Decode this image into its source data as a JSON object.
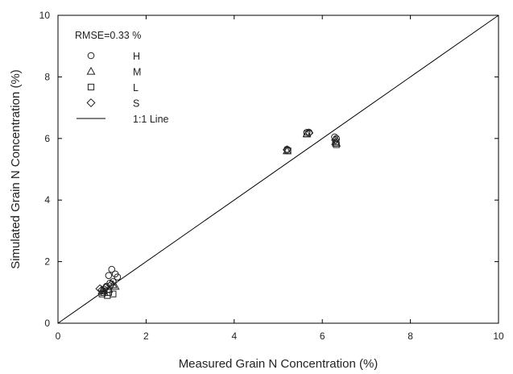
{
  "chart_data": {
    "type": "scatter",
    "title": "",
    "xlabel": "Measured Grain N Concentration (%)",
    "ylabel": "Simulated Grain N Concentration (%)",
    "xlim": [
      0,
      10
    ],
    "ylim": [
      0,
      10
    ],
    "xticks": [
      "0",
      "2",
      "4",
      "6",
      "8",
      "10"
    ],
    "yticks": [
      "0",
      "2",
      "4",
      "6",
      "8",
      "10"
    ],
    "grid": false,
    "legend_position": "top-left",
    "annotation": "RMSE=0.33 %",
    "series": [
      {
        "name": "H",
        "marker": "circle",
        "points": [
          [
            1.22,
            1.75
          ],
          [
            1.15,
            1.55
          ],
          [
            1.3,
            1.6
          ],
          [
            1.35,
            1.5
          ],
          [
            1.25,
            1.35
          ],
          [
            1.18,
            1.3
          ],
          [
            1.1,
            1.2
          ],
          [
            1.05,
            1.1
          ],
          [
            5.2,
            5.65
          ],
          [
            5.65,
            6.2
          ],
          [
            5.7,
            6.2
          ],
          [
            6.28,
            6.05
          ],
          [
            6.32,
            6.0
          ]
        ]
      },
      {
        "name": "M",
        "marker": "triangle",
        "points": [
          [
            1.3,
            1.2
          ],
          [
            1.25,
            1.25
          ],
          [
            1.15,
            1.1
          ],
          [
            1.05,
            1.0
          ],
          [
            1.0,
            1.05
          ],
          [
            5.2,
            5.6
          ],
          [
            5.65,
            6.15
          ],
          [
            6.3,
            5.9
          ],
          [
            6.32,
            5.85
          ]
        ]
      },
      {
        "name": "L",
        "marker": "square",
        "points": [
          [
            1.0,
            0.95
          ],
          [
            1.12,
            0.9
          ],
          [
            1.25,
            0.95
          ],
          [
            1.05,
            1.05
          ],
          [
            1.15,
            1.0
          ],
          [
            5.22,
            5.6
          ],
          [
            5.65,
            6.15
          ],
          [
            6.3,
            5.85
          ],
          [
            6.32,
            5.8
          ]
        ]
      },
      {
        "name": "S",
        "marker": "diamond",
        "points": [
          [
            0.95,
            1.12
          ],
          [
            1.0,
            1.08
          ],
          [
            1.08,
            1.15
          ],
          [
            1.2,
            1.25
          ],
          [
            5.2,
            5.63
          ],
          [
            5.7,
            6.18
          ],
          [
            6.3,
            5.95
          ]
        ]
      }
    ],
    "reference_line": {
      "name": "1:1 Line",
      "from": [
        0,
        0
      ],
      "to": [
        10,
        10
      ]
    }
  }
}
